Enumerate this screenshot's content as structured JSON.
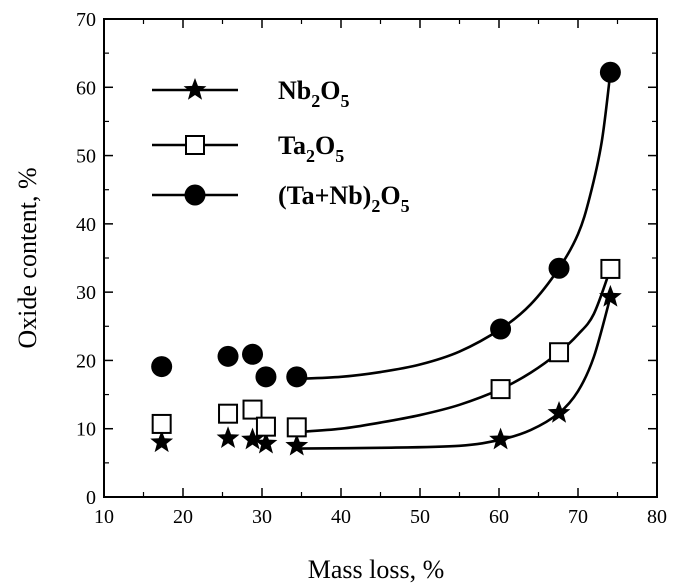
{
  "chart_data": {
    "type": "scatter",
    "xlabel": "Mass loss, %",
    "ylabel": "Oxide content, %",
    "xlim": [
      10,
      80
    ],
    "ylim": [
      0,
      70
    ],
    "x_ticks": [
      "10",
      "20",
      "30",
      "40",
      "50",
      "60",
      "70",
      "80"
    ],
    "y_ticks": [
      "0",
      "10",
      "20",
      "30",
      "40",
      "50",
      "60",
      "70"
    ],
    "grid": false,
    "legend_position": "top-left",
    "series": [
      {
        "name": "Nb2O5",
        "legend_main": "Nb",
        "legend_sub1": "2",
        "legend_mid": "O",
        "legend_sub2": "5",
        "marker": "filled-star",
        "x": [
          17.3,
          25.7,
          28.8,
          30.5,
          34.4,
          60.2,
          67.6,
          74.1
        ],
        "y": [
          8.0,
          8.6,
          8.4,
          7.8,
          7.5,
          8.4,
          12.3,
          29.3
        ],
        "curve_x": [
          34.4,
          45,
          55,
          60.2,
          64,
          67.6,
          70,
          72,
          74.1
        ],
        "curve_y": [
          7.1,
          7.2,
          7.5,
          8.4,
          9.8,
          12.3,
          15.5,
          20.5,
          29.3
        ]
      },
      {
        "name": "Ta2O5",
        "legend_main": "Ta",
        "legend_sub1": "2",
        "legend_mid": "O",
        "legend_sub2": "5",
        "marker": "open-square",
        "x": [
          17.3,
          25.7,
          28.8,
          30.5,
          34.4,
          60.2,
          67.6,
          74.1
        ],
        "y": [
          10.7,
          12.2,
          12.8,
          10.3,
          10.2,
          15.8,
          21.2,
          33.4
        ],
        "curve_x": [
          34.4,
          40,
          45,
          50,
          55,
          60.2,
          64,
          67.6,
          70,
          72,
          74.1
        ],
        "curve_y": [
          9.5,
          10.0,
          10.9,
          12.0,
          13.5,
          15.8,
          18.2,
          21.2,
          23.8,
          26.8,
          33.4
        ]
      },
      {
        "name": "(Ta+Nb)2O5",
        "legend_main": "(Ta+Nb)",
        "legend_sub1": "2",
        "legend_mid": "O",
        "legend_sub2": "5",
        "marker": "filled-circle",
        "x": [
          17.3,
          25.7,
          28.8,
          30.5,
          34.4,
          60.2,
          67.6,
          74.1
        ],
        "y": [
          19.1,
          20.6,
          20.9,
          17.6,
          17.6,
          24.6,
          33.5,
          62.2
        ],
        "curve_x": [
          34.4,
          40,
          45,
          50,
          55,
          60.2,
          64,
          67.6,
          70,
          71.5,
          73,
          74.1
        ],
        "curve_y": [
          17.3,
          17.6,
          18.3,
          19.4,
          21.3,
          24.6,
          28.2,
          33.5,
          38.5,
          44.0,
          52.0,
          62.2
        ]
      }
    ]
  }
}
